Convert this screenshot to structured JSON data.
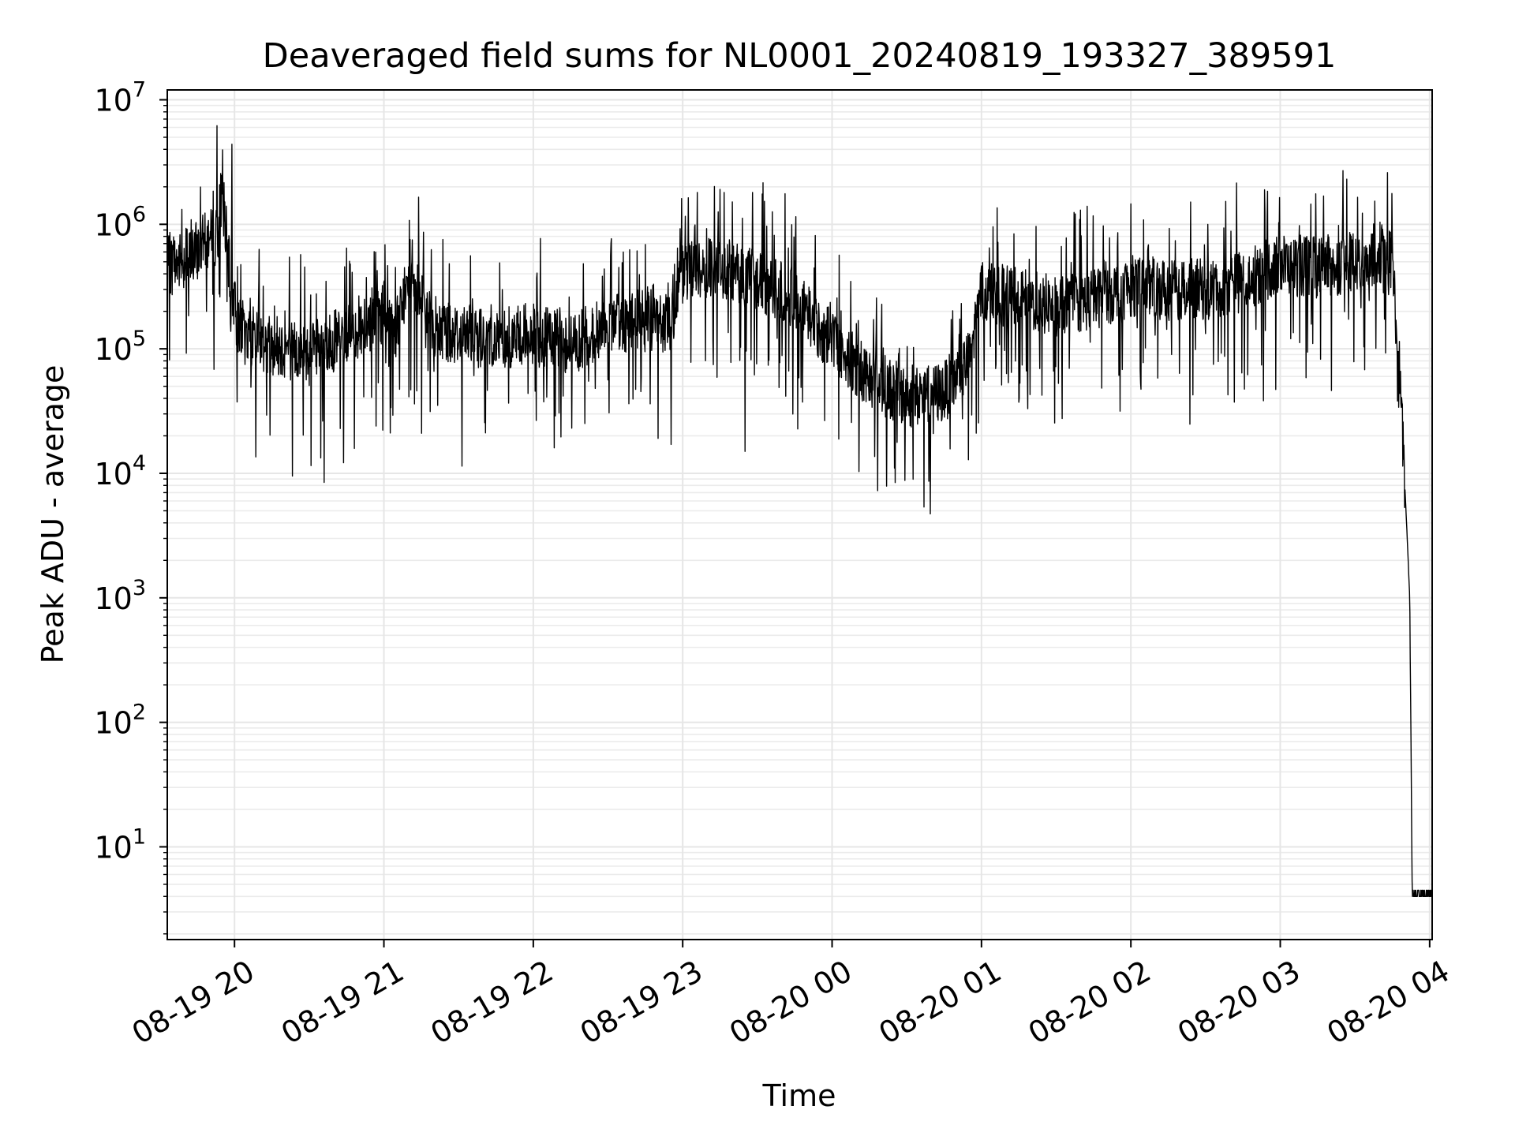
{
  "chart_data": {
    "type": "line",
    "title": "Deaveraged field sums for NL0001_20240819_193327_389591",
    "xlabel": "Time",
    "ylabel": "Peak ADU - average",
    "yscale": "log",
    "ylim": [
      1.8,
      12000000
    ],
    "xlim": [
      "2024-08-19 19:33",
      "2024-08-20 04:01"
    ],
    "grid": true,
    "x_ticks": [
      {
        "value": "2024-08-19 20:00",
        "label": "08-19 20"
      },
      {
        "value": "2024-08-19 21:00",
        "label": "08-19 21"
      },
      {
        "value": "2024-08-19 22:00",
        "label": "08-19 22"
      },
      {
        "value": "2024-08-19 23:00",
        "label": "08-19 23"
      },
      {
        "value": "2024-08-20 00:00",
        "label": "08-20 00"
      },
      {
        "value": "2024-08-20 01:00",
        "label": "08-20 01"
      },
      {
        "value": "2024-08-20 02:00",
        "label": "08-20 02"
      },
      {
        "value": "2024-08-20 03:00",
        "label": "08-20 03"
      },
      {
        "value": "2024-08-20 04:00",
        "label": "08-20 04"
      }
    ],
    "y_ticks": [
      {
        "value": 10,
        "base": "10",
        "exp": "1"
      },
      {
        "value": 100,
        "base": "10",
        "exp": "2"
      },
      {
        "value": 1000,
        "base": "10",
        "exp": "3"
      },
      {
        "value": 10000,
        "base": "10",
        "exp": "4"
      },
      {
        "value": 100000,
        "base": "10",
        "exp": "5"
      },
      {
        "value": 1000000,
        "base": "10",
        "exp": "6"
      },
      {
        "value": 10000000,
        "base": "10",
        "exp": "7"
      }
    ],
    "series": [
      {
        "color": "#000000",
        "noisy": true,
        "x": [
          "2024-08-19 19:33",
          "2024-08-19 19:38",
          "2024-08-19 19:43",
          "2024-08-19 19:48",
          "2024-08-19 19:53",
          "2024-08-19 19:55",
          "2024-08-19 19:58",
          "2024-08-19 20:01",
          "2024-08-19 20:05",
          "2024-08-19 20:15",
          "2024-08-19 20:30",
          "2024-08-19 20:45",
          "2024-08-19 21:00",
          "2024-08-19 21:05",
          "2024-08-19 21:12",
          "2024-08-19 21:15",
          "2024-08-19 21:20",
          "2024-08-19 21:30",
          "2024-08-19 21:45",
          "2024-08-19 22:00",
          "2024-08-19 22:15",
          "2024-08-19 22:30",
          "2024-08-19 22:45",
          "2024-08-19 22:55",
          "2024-08-19 23:00",
          "2024-08-19 23:15",
          "2024-08-19 23:30",
          "2024-08-19 23:45",
          "2024-08-19 23:55",
          "2024-08-20 00:05",
          "2024-08-20 00:15",
          "2024-08-20 00:30",
          "2024-08-20 00:45",
          "2024-08-20 00:55",
          "2024-08-20 01:00",
          "2024-08-20 01:15",
          "2024-08-20 01:30",
          "2024-08-20 01:45",
          "2024-08-20 02:00",
          "2024-08-20 02:15",
          "2024-08-20 02:30",
          "2024-08-20 02:45",
          "2024-08-20 03:00",
          "2024-08-20 03:15",
          "2024-08-20 03:30",
          "2024-08-20 03:40",
          "2024-08-20 03:45",
          "2024-08-20 03:48",
          "2024-08-20 03:51",
          "2024-08-20 03:52",
          "2024-08-20 03:53",
          "2024-08-20 03:54",
          "2024-08-20 03:55",
          "2024-08-20 04:00",
          "2024-08-20 04:01"
        ],
        "y": [
          450000,
          500000,
          550000,
          700000,
          800000,
          2000000,
          400000,
          160000,
          130000,
          110000,
          90000,
          130000,
          200000,
          150000,
          400000,
          250000,
          150000,
          130000,
          120000,
          130000,
          110000,
          150000,
          180000,
          150000,
          400000,
          450000,
          350000,
          250000,
          140000,
          90000,
          60000,
          40000,
          45000,
          80000,
          300000,
          250000,
          220000,
          250000,
          320000,
          300000,
          300000,
          350000,
          480000,
          450000,
          500000,
          600000,
          500000,
          60000,
          3000,
          1000,
          4,
          4,
          4,
          4,
          4
        ]
      }
    ],
    "spikes": [
      {
        "x": "2024-08-19 19:53",
        "y": 6200000
      },
      {
        "x": "2024-08-19 19:59",
        "y": 4400000
      },
      {
        "x": "2024-08-19 21:14",
        "y": 1650000
      },
      {
        "x": "2024-08-19 23:28",
        "y": 1800000
      },
      {
        "x": "2024-08-19 23:32",
        "y": 1750000
      },
      {
        "x": "2024-08-19 23:25",
        "y": 15000
      },
      {
        "x": "2024-08-20 00:25",
        "y": 11000
      },
      {
        "x": "2024-08-20 03:43",
        "y": 2600000
      }
    ]
  }
}
